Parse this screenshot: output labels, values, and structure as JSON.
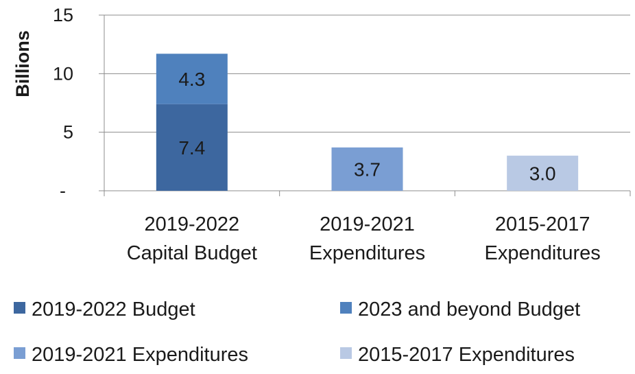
{
  "chart_data": {
    "type": "bar",
    "stacked": true,
    "ylabel": "Billions",
    "ylim": [
      0,
      15
    ],
    "yticks": [
      {
        "value": 0,
        "label": "-"
      },
      {
        "value": 5,
        "label": "5"
      },
      {
        "value": 10,
        "label": "10"
      },
      {
        "value": 15,
        "label": "15"
      }
    ],
    "grid": true,
    "legend_position": "bottom",
    "categories": [
      [
        "2019-2022",
        "Capital Budget"
      ],
      [
        "2019-2021",
        "Expenditures"
      ],
      [
        "2015-2017",
        "Expenditures"
      ]
    ],
    "series": [
      {
        "name": "2019-2022 Budget",
        "color": "#3d679f",
        "values": [
          7.4,
          0,
          0
        ]
      },
      {
        "name": "2023 and beyond Budget",
        "color": "#4f81bd",
        "values": [
          4.3,
          0,
          0
        ]
      },
      {
        "name": "2019-2021 Expenditures",
        "color": "#7a9ed3",
        "values": [
          0,
          3.7,
          0
        ]
      },
      {
        "name": "2015-2017 Expenditures",
        "color": "#b9c9e4",
        "values": [
          0,
          0,
          3.0
        ]
      }
    ]
  }
}
